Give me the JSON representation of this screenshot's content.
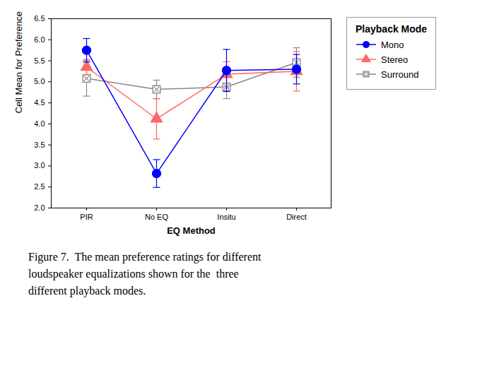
{
  "chart_data": {
    "type": "line",
    "categories": [
      "PIR",
      "No EQ",
      "Insitu",
      "Direct"
    ],
    "series": [
      {
        "name": "Mono",
        "color": "#0000ff",
        "marker": "circle",
        "values": [
          5.75,
          2.82,
          5.27,
          5.3
        ],
        "errors": [
          0.28,
          0.33,
          0.5,
          0.35
        ]
      },
      {
        "name": "Stereo",
        "color": "#ff6666",
        "marker": "triangle",
        "values": [
          5.35,
          4.12,
          5.18,
          5.25
        ],
        "errors": [
          0.18,
          0.48,
          0.3,
          0.47
        ]
      },
      {
        "name": "Surround",
        "color": "#888888",
        "marker": "square",
        "values": [
          5.08,
          4.82,
          4.88,
          5.46
        ],
        "errors": [
          0.42,
          0.22,
          0.28,
          0.35
        ]
      }
    ],
    "xlabel": "EQ Method",
    "ylabel": "Cell Mean for Preference",
    "ylim": [
      2.0,
      6.5
    ],
    "yticks": [
      2,
      2.5,
      3,
      3.5,
      4,
      4.5,
      5,
      5.5,
      6,
      6.5
    ],
    "grid": false,
    "legend": "upper right",
    "legend_title": "Playback Mode",
    "caption": "Figure 7.  The mean preference ratings for different\nloudspeaker equalizations shown for the  three\ndifferent playback modes."
  }
}
